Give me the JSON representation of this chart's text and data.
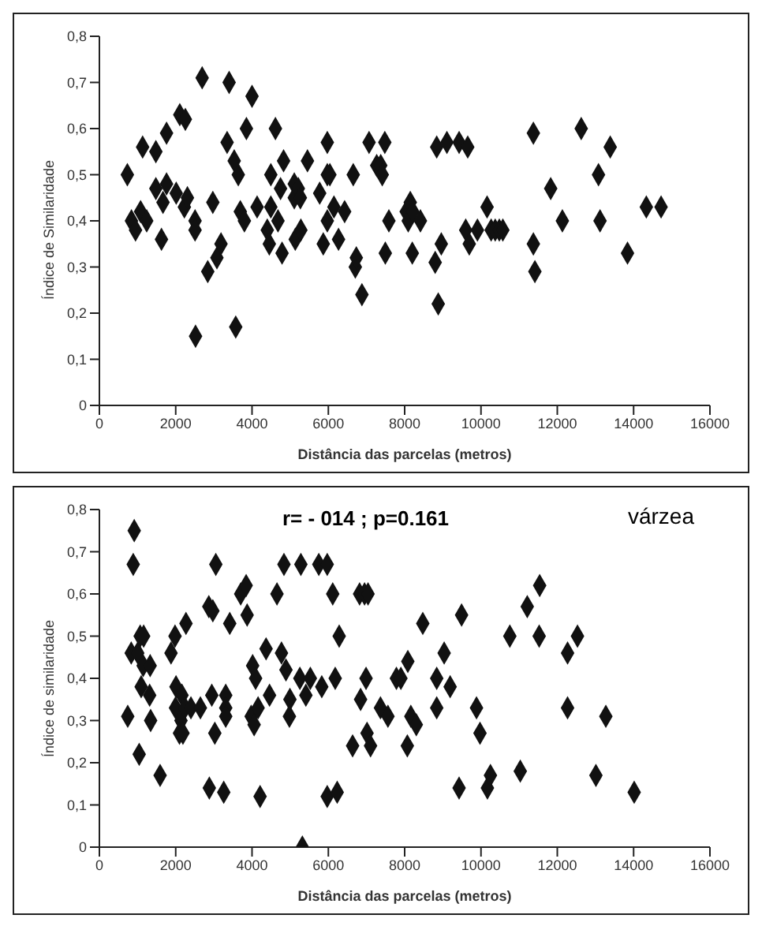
{
  "chart_data": [
    {
      "type": "scatter",
      "xlabel": "Distância das parcelas (metros)",
      "ylabel": "Índice de Similaridade",
      "xlim": [
        0,
        16000
      ],
      "xticks": [
        0,
        2000,
        4000,
        6000,
        8000,
        10000,
        12000,
        14000,
        16000
      ],
      "ylim": [
        0,
        0.8
      ],
      "yticks": [
        {
          "value": 0,
          "label": "0"
        },
        {
          "value": 0.1,
          "label": "0,1"
        },
        {
          "value": 0.2,
          "label": "0,2"
        },
        {
          "value": 0.3,
          "label": "0,3"
        },
        {
          "value": 0.4,
          "label": "0,4"
        },
        {
          "value": 0.5,
          "label": "0,5"
        },
        {
          "value": 0.6,
          "label": "0,6"
        },
        {
          "value": 0.7,
          "label": "0,7"
        },
        {
          "value": 0.8,
          "label": "0,8"
        }
      ],
      "grid": false,
      "legend": false,
      "marker": "diamond",
      "series": [
        {
          "color": "#111111",
          "x": [
            733,
            840,
            947,
            1080,
            1133,
            1240,
            1480,
            1480,
            1627,
            1667,
            1760,
            1760,
            2013,
            2107,
            2227,
            2253,
            2307,
            2507,
            2507,
            2520,
            2693,
            2840,
            2973,
            3080,
            3187,
            3347,
            3400,
            3533,
            3573,
            3640,
            3693,
            3800,
            3853,
            4000,
            4133,
            4400,
            4453,
            4493,
            4493,
            4613,
            4680,
            4747,
            4787,
            4827,
            5107,
            5107,
            5133,
            5213,
            5267,
            5280,
            5453,
            5773,
            5867,
            5973,
            5973,
            5973,
            6040,
            6147,
            6267,
            6427,
            6653,
            6707,
            6733,
            6880,
            7067,
            7267,
            7373,
            7413,
            7480,
            7493,
            7587,
            8040,
            8093,
            8147,
            8200,
            8213,
            8413,
            8800,
            8840,
            8880,
            8960,
            9107,
            9427,
            9600,
            9653,
            9693,
            9907,
            10160,
            10267,
            10373,
            10480,
            10573,
            11373,
            11373,
            11413,
            11827,
            12133,
            12627,
            13080,
            13120,
            13387,
            13840,
            14333,
            14720
          ],
          "values": [
            0.5,
            0.4,
            0.38,
            0.42,
            0.56,
            0.4,
            0.55,
            0.47,
            0.36,
            0.44,
            0.59,
            0.48,
            0.46,
            0.63,
            0.43,
            0.62,
            0.45,
            0.4,
            0.38,
            0.15,
            0.71,
            0.29,
            0.44,
            0.32,
            0.35,
            0.57,
            0.7,
            0.53,
            0.17,
            0.5,
            0.42,
            0.4,
            0.6,
            0.67,
            0.43,
            0.38,
            0.35,
            0.5,
            0.43,
            0.6,
            0.4,
            0.47,
            0.33,
            0.53,
            0.48,
            0.45,
            0.36,
            0.47,
            0.45,
            0.38,
            0.53,
            0.46,
            0.35,
            0.57,
            0.5,
            0.4,
            0.5,
            0.43,
            0.36,
            0.42,
            0.5,
            0.3,
            0.32,
            0.24,
            0.57,
            0.52,
            0.52,
            0.5,
            0.57,
            0.33,
            0.4,
            0.42,
            0.4,
            0.44,
            0.33,
            0.42,
            0.4,
            0.31,
            0.56,
            0.22,
            0.35,
            0.57,
            0.57,
            0.38,
            0.56,
            0.35,
            0.38,
            0.43,
            0.38,
            0.38,
            0.38,
            0.38,
            0.59,
            0.35,
            0.29,
            0.47,
            0.4,
            0.6,
            0.5,
            0.4,
            0.56,
            0.33,
            0.43,
            0.43
          ]
        }
      ]
    },
    {
      "type": "scatter",
      "xlabel": "Distância das parcelas (metros)",
      "ylabel": "Índice de similaridade",
      "annotations": [
        "r= - 014 ; p=0.161",
        "várzea"
      ],
      "xlim": [
        0,
        16000
      ],
      "xticks": [
        0,
        2000,
        4000,
        6000,
        8000,
        10000,
        12000,
        14000,
        16000
      ],
      "ylim": [
        0,
        0.8
      ],
      "yticks": [
        {
          "value": 0,
          "label": "0"
        },
        {
          "value": 0.1,
          "label": "0,1"
        },
        {
          "value": 0.2,
          "label": "0,2"
        },
        {
          "value": 0.3,
          "label": "0,3"
        },
        {
          "value": 0.4,
          "label": "0,4"
        },
        {
          "value": 0.5,
          "label": "0,5"
        },
        {
          "value": 0.6,
          "label": "0,6"
        },
        {
          "value": 0.7,
          "label": "0,7"
        },
        {
          "value": 0.8,
          "label": "0,8"
        }
      ],
      "grid": false,
      "legend": false,
      "marker": "diamond",
      "series": [
        {
          "color": "#111111",
          "x": [
            743,
            834,
            913,
            887,
            1004,
            1043,
            1069,
            1160,
            1095,
            1147,
            1330,
            1317,
            1343,
            1591,
            1877,
            1982,
            2008,
            1995,
            2138,
            2099,
            2190,
            2164,
            2269,
            2243,
            2399,
            2647,
            2868,
            2973,
            2881,
            2946,
            3025,
            3051,
            3259,
            3311,
            3311,
            3311,
            3416,
            3703,
            3846,
            3872,
            3977,
            4016,
            4055,
            4094,
            4159,
            4211,
            4368,
            4459,
            4654,
            4772,
            4837,
            4889,
            4993,
            4980,
            5254,
            5280,
            5319,
            5411,
            5528,
            5750,
            5971,
            5828,
            5971,
            6115,
            6180,
            6232,
            6284,
            6636,
            6845,
            6819,
            6949,
            7040,
            6988,
            7014,
            7106,
            7366,
            7562,
            7784,
            7901,
            8083,
            8070,
            8162,
            8305,
            8475,
            8840,
            8840,
            9035,
            9192,
            9426,
            9492,
            9883,
            9974,
            10169,
            10248,
            10756,
            11030,
            11213,
            11525,
            11538,
            12269,
            12269,
            12529,
            13012,
            13272,
            14015
          ],
          "values": [
            0.31,
            0.46,
            0.75,
            0.67,
            0.46,
            0.22,
            0.5,
            0.5,
            0.38,
            0.43,
            0.43,
            0.36,
            0.3,
            0.17,
            0.46,
            0.5,
            0.38,
            0.33,
            0.3,
            0.27,
            0.27,
            0.36,
            0.53,
            0.33,
            0.33,
            0.33,
            0.57,
            0.56,
            0.14,
            0.36,
            0.27,
            0.67,
            0.13,
            0.36,
            0.33,
            0.31,
            0.53,
            0.6,
            0.62,
            0.55,
            0.31,
            0.43,
            0.29,
            0.4,
            0.33,
            0.12,
            0.47,
            0.36,
            0.6,
            0.46,
            0.67,
            0.42,
            0.35,
            0.31,
            0.4,
            0.67,
            0,
            0.36,
            0.4,
            0.67,
            0.67,
            0.38,
            0.12,
            0.6,
            0.4,
            0.13,
            0.5,
            0.24,
            0.35,
            0.6,
            0.6,
            0.6,
            0.4,
            0.27,
            0.24,
            0.33,
            0.31,
            0.4,
            0.4,
            0.44,
            0.24,
            0.31,
            0.29,
            0.53,
            0.4,
            0.33,
            0.46,
            0.38,
            0.14,
            0.55,
            0.33,
            0.27,
            0.14,
            0.17,
            0.5,
            0.18,
            0.57,
            0.5,
            0.62,
            0.46,
            0.33,
            0.5,
            0.17,
            0.31,
            0.13
          ]
        }
      ]
    }
  ]
}
